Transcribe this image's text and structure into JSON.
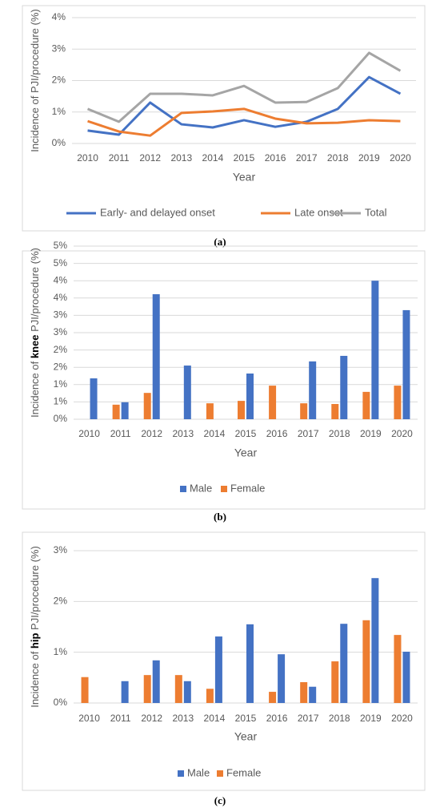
{
  "chart_data": [
    {
      "type": "line",
      "caption": "(a)",
      "xlabel": "Year",
      "ylabel": [
        "Incidence of PJI/procedure (%)"
      ],
      "categories": [
        "2010",
        "2011",
        "2012",
        "2013",
        "2014",
        "2015",
        "2016",
        "2017",
        "2018",
        "2019",
        "2020"
      ],
      "series": [
        {
          "name": "Early- and delayed onset",
          "color": "#4472c4",
          "values": [
            0.41,
            0.28,
            1.3,
            0.61,
            0.51,
            0.74,
            0.53,
            0.69,
            1.1,
            2.11,
            1.58
          ]
        },
        {
          "name": "Late onset",
          "color": "#ed7d31",
          "values": [
            0.71,
            0.38,
            0.25,
            0.97,
            1.02,
            1.1,
            0.79,
            0.64,
            0.66,
            0.74,
            0.71
          ]
        },
        {
          "name": "Total",
          "color": "#a5a5a5",
          "values": [
            1.1,
            0.69,
            1.58,
            1.58,
            1.53,
            1.83,
            1.3,
            1.32,
            1.76,
            2.88,
            2.31
          ]
        }
      ],
      "ylim": [
        0,
        4
      ],
      "yticks": [
        {
          "value": 0,
          "label": "0%"
        },
        {
          "value": 1,
          "label": "1%"
        },
        {
          "value": 2,
          "label": "2%"
        },
        {
          "value": 3,
          "label": "3%"
        },
        {
          "value": 4,
          "label": "4%"
        }
      ],
      "grid": true,
      "legend": "bottom"
    },
    {
      "type": "bar",
      "caption": "(b)",
      "xlabel": "Year",
      "ylabel": [
        "Incidence of ",
        "knee",
        " PJI/procedure (%)"
      ],
      "categories": [
        "2010",
        "2011",
        "2012",
        "2013",
        "2014",
        "2015",
        "2016",
        "2017",
        "2018",
        "2019",
        "2020"
      ],
      "series": [
        {
          "name": "Male",
          "color": "#4472c4",
          "values": [
            1.18,
            0.49,
            3.61,
            1.55,
            null,
            1.32,
            null,
            1.67,
            1.83,
            4.0,
            3.15
          ]
        },
        {
          "name": "Female",
          "color": "#ed7d31",
          "values": [
            null,
            0.42,
            0.76,
            null,
            0.46,
            0.53,
            0.97,
            0.46,
            0.44,
            0.79,
            0.97
          ]
        }
      ],
      "ylim": [
        0,
        5
      ],
      "yticks": [
        {
          "value": 0,
          "label": "0%"
        },
        {
          "value": 0.5,
          "label": "1%"
        },
        {
          "value": 1,
          "label": "1%"
        },
        {
          "value": 1.5,
          "label": "2%"
        },
        {
          "value": 2,
          "label": "2%"
        },
        {
          "value": 2.5,
          "label": "3%"
        },
        {
          "value": 3,
          "label": "3%"
        },
        {
          "value": 3.5,
          "label": "4%"
        },
        {
          "value": 4,
          "label": "4%"
        },
        {
          "value": 4.5,
          "label": "5%"
        },
        {
          "value": 5,
          "label": "5%"
        }
      ],
      "grid": true,
      "legend": "bottom"
    },
    {
      "type": "bar",
      "caption": "(c)",
      "xlabel": "Year",
      "ylabel": [
        "Incidence of ",
        "hip",
        " PJI/procedure (%)"
      ],
      "categories": [
        "2010",
        "2011",
        "2012",
        "2013",
        "2014",
        "2015",
        "2016",
        "2017",
        "2018",
        "2019",
        "2020"
      ],
      "series": [
        {
          "name": "Male",
          "color": "#4472c4",
          "values": [
            null,
            0.43,
            0.84,
            0.43,
            1.31,
            1.55,
            0.96,
            0.32,
            1.56,
            2.46,
            1.01
          ]
        },
        {
          "name": "Female",
          "color": "#ed7d31",
          "values": [
            0.51,
            null,
            0.55,
            0.55,
            0.28,
            null,
            0.22,
            0.41,
            0.82,
            1.63,
            1.34
          ]
        }
      ],
      "ylim": [
        0,
        3
      ],
      "yticks": [
        {
          "value": 0,
          "label": "0%"
        },
        {
          "value": 1,
          "label": "1%"
        },
        {
          "value": 2,
          "label": "2%"
        },
        {
          "value": 3,
          "label": "3%"
        }
      ],
      "grid": true,
      "legend": "bottom"
    }
  ]
}
